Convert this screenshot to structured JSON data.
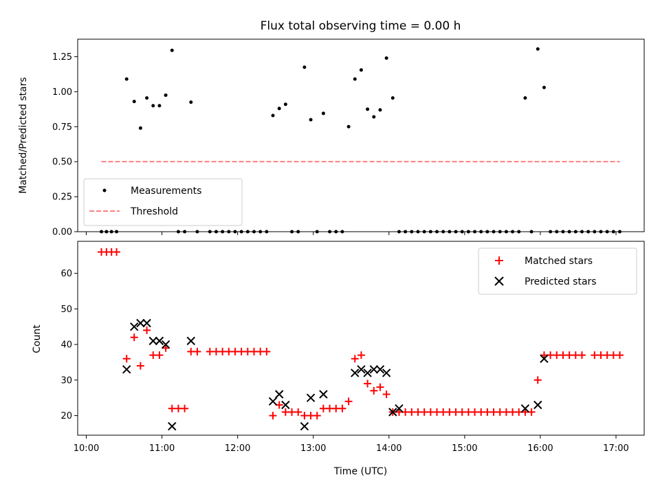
{
  "chart_data": [
    {
      "type": "scatter",
      "title": "Flux total observing time = 0.00 h",
      "xlabel": "",
      "ylabel": "Matched/Predicted stars",
      "xlim": [
        "10:00",
        "17:00"
      ],
      "ylim": [
        0,
        1.375
      ],
      "yticks": [
        "0.00",
        "0.25",
        "0.50",
        "0.75",
        "1.00",
        "1.25"
      ],
      "legend_placement": "lower-left",
      "series": [
        {
          "name": "Measurements",
          "marker": "dot",
          "color": "#000000",
          "points": [
            [
              "10:12",
              0
            ],
            [
              "10:16",
              0
            ],
            [
              "10:20",
              0
            ],
            [
              "10:24",
              0
            ],
            [
              "10:32",
              1.09
            ],
            [
              "10:38",
              0.93
            ],
            [
              "10:43",
              0.74
            ],
            [
              "10:48",
              0.955
            ],
            [
              "10:53",
              0.9
            ],
            [
              "10:58",
              0.9
            ],
            [
              "11:03",
              0.975
            ],
            [
              "11:08",
              1.295
            ],
            [
              "11:13",
              0
            ],
            [
              "11:18",
              0
            ],
            [
              "11:23",
              0.925
            ],
            [
              "11:28",
              0
            ],
            [
              "11:38",
              0
            ],
            [
              "11:43",
              0
            ],
            [
              "11:48",
              0
            ],
            [
              "11:53",
              0
            ],
            [
              "11:58",
              0
            ],
            [
              "12:03",
              0
            ],
            [
              "12:08",
              0
            ],
            [
              "12:13",
              0
            ],
            [
              "12:18",
              0
            ],
            [
              "12:23",
              0
            ],
            [
              "12:28",
              0.83
            ],
            [
              "12:33",
              0.88
            ],
            [
              "12:38",
              0.91
            ],
            [
              "12:43",
              0
            ],
            [
              "12:48",
              0
            ],
            [
              "12:53",
              1.175
            ],
            [
              "12:58",
              0.8
            ],
            [
              "13:03",
              0
            ],
            [
              "13:08",
              0.845
            ],
            [
              "13:13",
              0
            ],
            [
              "13:18",
              0
            ],
            [
              "13:23",
              0
            ],
            [
              "13:28",
              0.75
            ],
            [
              "13:33",
              1.09
            ],
            [
              "13:38",
              1.155
            ],
            [
              "13:43",
              0.875
            ],
            [
              "13:48",
              0.82
            ],
            [
              "13:53",
              0.87
            ],
            [
              "13:58",
              1.24
            ],
            [
              "14:03",
              0.955
            ],
            [
              "14:08",
              0
            ],
            [
              "14:13",
              0
            ],
            [
              "14:18",
              0
            ],
            [
              "14:23",
              0
            ],
            [
              "14:28",
              0
            ],
            [
              "14:33",
              0
            ],
            [
              "14:38",
              0
            ],
            [
              "14:43",
              0
            ],
            [
              "14:48",
              0
            ],
            [
              "14:53",
              0
            ],
            [
              "14:58",
              0
            ],
            [
              "15:03",
              0
            ],
            [
              "15:08",
              0
            ],
            [
              "15:13",
              0
            ],
            [
              "15:18",
              0
            ],
            [
              "15:23",
              0
            ],
            [
              "15:28",
              0
            ],
            [
              "15:33",
              0
            ],
            [
              "15:38",
              0
            ],
            [
              "15:43",
              0
            ],
            [
              "15:48",
              0.955
            ],
            [
              "15:53",
              0
            ],
            [
              "15:58",
              1.305
            ],
            [
              "16:03",
              1.03
            ],
            [
              "16:08",
              0
            ],
            [
              "16:13",
              0
            ],
            [
              "16:18",
              0
            ],
            [
              "16:23",
              0
            ],
            [
              "16:28",
              0
            ],
            [
              "16:33",
              0
            ],
            [
              "16:38",
              0
            ],
            [
              "16:43",
              0
            ],
            [
              "16:48",
              0
            ],
            [
              "16:53",
              0
            ],
            [
              "16:58",
              0
            ],
            [
              "17:03",
              0
            ]
          ]
        },
        {
          "name": "Threshold",
          "marker": "dashed-line",
          "color": "#ff7f7f",
          "points": [
            [
              "10:12",
              0.5
            ],
            [
              "17:03",
              0.5
            ]
          ]
        }
      ]
    },
    {
      "type": "scatter",
      "title": "",
      "xlabel": "Time (UTC)",
      "ylabel": "Count",
      "xlim": [
        "10:00",
        "17:00"
      ],
      "ylim": [
        14.5,
        69
      ],
      "xticks": [
        "10:00",
        "11:00",
        "12:00",
        "13:00",
        "14:00",
        "15:00",
        "16:00",
        "17:00"
      ],
      "yticks": [
        "20",
        "30",
        "40",
        "50",
        "60"
      ],
      "legend_placement": "upper-right",
      "series": [
        {
          "name": "Matched stars",
          "marker": "plus",
          "color": "#ff0000",
          "points": [
            [
              "10:12",
              66
            ],
            [
              "10:16",
              66
            ],
            [
              "10:20",
              66
            ],
            [
              "10:24",
              66
            ],
            [
              "10:32",
              36
            ],
            [
              "10:38",
              42
            ],
            [
              "10:43",
              34
            ],
            [
              "10:48",
              44
            ],
            [
              "10:53",
              37
            ],
            [
              "10:58",
              37
            ],
            [
              "11:03",
              39
            ],
            [
              "11:08",
              22
            ],
            [
              "11:13",
              22
            ],
            [
              "11:18",
              22
            ],
            [
              "11:23",
              38
            ],
            [
              "11:28",
              38
            ],
            [
              "11:38",
              38
            ],
            [
              "11:43",
              38
            ],
            [
              "11:48",
              38
            ],
            [
              "11:53",
              38
            ],
            [
              "11:58",
              38
            ],
            [
              "12:03",
              38
            ],
            [
              "12:08",
              38
            ],
            [
              "12:13",
              38
            ],
            [
              "12:18",
              38
            ],
            [
              "12:23",
              38
            ],
            [
              "12:28",
              20
            ],
            [
              "12:33",
              23
            ],
            [
              "12:38",
              21
            ],
            [
              "12:43",
              21
            ],
            [
              "12:48",
              21
            ],
            [
              "12:53",
              20
            ],
            [
              "12:58",
              20
            ],
            [
              "13:03",
              20
            ],
            [
              "13:08",
              22
            ],
            [
              "13:13",
              22
            ],
            [
              "13:18",
              22
            ],
            [
              "13:23",
              22
            ],
            [
              "13:28",
              24
            ],
            [
              "13:33",
              36
            ],
            [
              "13:38",
              37
            ],
            [
              "13:43",
              29
            ],
            [
              "13:48",
              27
            ],
            [
              "13:53",
              28
            ],
            [
              "13:58",
              26
            ],
            [
              "14:03",
              21
            ],
            [
              "14:08",
              21
            ],
            [
              "14:13",
              21
            ],
            [
              "14:18",
              21
            ],
            [
              "14:23",
              21
            ],
            [
              "14:28",
              21
            ],
            [
              "14:33",
              21
            ],
            [
              "14:38",
              21
            ],
            [
              "14:43",
              21
            ],
            [
              "14:48",
              21
            ],
            [
              "14:53",
              21
            ],
            [
              "14:58",
              21
            ],
            [
              "15:03",
              21
            ],
            [
              "15:08",
              21
            ],
            [
              "15:13",
              21
            ],
            [
              "15:18",
              21
            ],
            [
              "15:23",
              21
            ],
            [
              "15:28",
              21
            ],
            [
              "15:33",
              21
            ],
            [
              "15:38",
              21
            ],
            [
              "15:43",
              21
            ],
            [
              "15:48",
              21
            ],
            [
              "15:53",
              21
            ],
            [
              "15:58",
              30
            ],
            [
              "16:03",
              37
            ],
            [
              "16:08",
              37
            ],
            [
              "16:13",
              37
            ],
            [
              "16:18",
              37
            ],
            [
              "16:23",
              37
            ],
            [
              "16:28",
              37
            ],
            [
              "16:33",
              37
            ],
            [
              "16:43",
              37
            ],
            [
              "16:48",
              37
            ],
            [
              "16:53",
              37
            ],
            [
              "16:58",
              37
            ],
            [
              "17:03",
              37
            ]
          ]
        },
        {
          "name": "Predicted stars",
          "marker": "x",
          "color": "#000000",
          "points": [
            [
              "10:32",
              33
            ],
            [
              "10:38",
              45
            ],
            [
              "10:43",
              46
            ],
            [
              "10:48",
              46
            ],
            [
              "10:53",
              41
            ],
            [
              "10:58",
              41
            ],
            [
              "11:03",
              40
            ],
            [
              "11:08",
              17
            ],
            [
              "11:23",
              41
            ],
            [
              "12:28",
              24
            ],
            [
              "12:33",
              26
            ],
            [
              "12:38",
              23
            ],
            [
              "12:53",
              17
            ],
            [
              "12:58",
              25
            ],
            [
              "13:08",
              26
            ],
            [
              "13:33",
              32
            ],
            [
              "13:38",
              33
            ],
            [
              "13:43",
              32
            ],
            [
              "13:48",
              33
            ],
            [
              "13:53",
              33
            ],
            [
              "13:58",
              32
            ],
            [
              "14:03",
              21
            ],
            [
              "14:08",
              22
            ],
            [
              "15:48",
              22
            ],
            [
              "15:58",
              23
            ],
            [
              "16:03",
              36
            ]
          ]
        }
      ]
    }
  ]
}
